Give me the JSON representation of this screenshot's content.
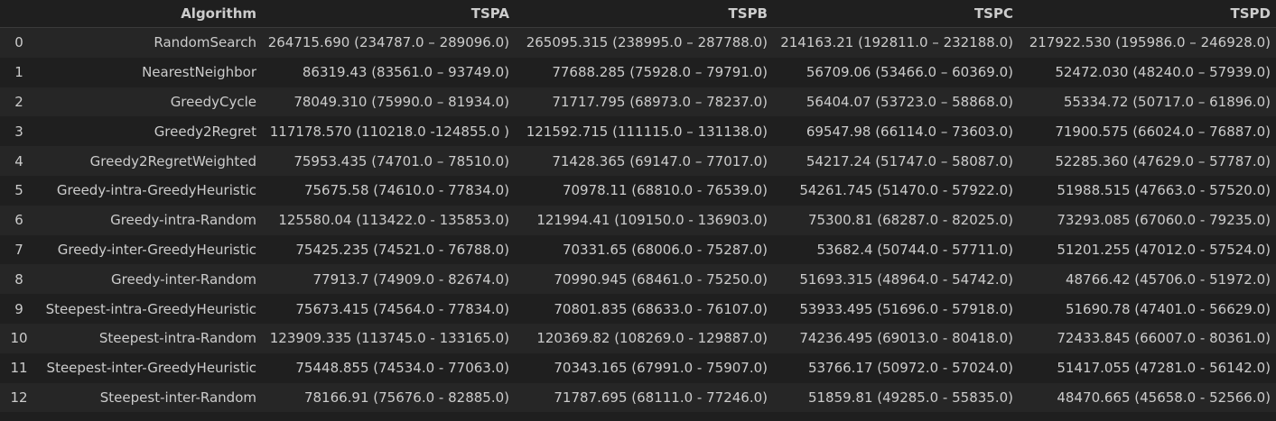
{
  "table": {
    "columns": [
      "",
      "Algorithm",
      "TSPA",
      "TSPB",
      "TSPC",
      "TSPD"
    ],
    "rows": [
      [
        "0",
        "RandomSearch",
        "264715.690 (234787.0 – 289096.0)",
        "265095.315 (238995.0 – 287788.0)",
        "214163.21 (192811.0 – 232188.0)",
        "217922.530 (195986.0 – 246928.0)"
      ],
      [
        "1",
        "NearestNeighbor",
        "86319.43 (83561.0 – 93749.0)",
        "77688.285 (75928.0 – 79791.0)",
        "56709.06 (53466.0 – 60369.0)",
        "52472.030 (48240.0 – 57939.0)"
      ],
      [
        "2",
        "GreedyCycle",
        "78049.310 (75990.0 – 81934.0)",
        "71717.795 (68973.0 – 78237.0)",
        "56404.07 (53723.0 – 58868.0)",
        "55334.72 (50717.0 – 61896.0)"
      ],
      [
        "3",
        "Greedy2Regret",
        "117178.570 (110218.0 -124855.0 )",
        "121592.715 (111115.0 – 131138.0)",
        "69547.98 (66114.0 – 73603.0)",
        "71900.575 (66024.0 – 76887.0)"
      ],
      [
        "4",
        "Greedy2RegretWeighted",
        "75953.435 (74701.0 – 78510.0)",
        "71428.365 (69147.0 – 77017.0)",
        "54217.24 (51747.0 – 58087.0)",
        "52285.360 (47629.0 – 57787.0)"
      ],
      [
        "5",
        "Greedy-intra-GreedyHeuristic",
        "75675.58 (74610.0 - 77834.0)",
        "70978.11 (68810.0 - 76539.0)",
        "54261.745 (51470.0 - 57922.0)",
        "51988.515 (47663.0 - 57520.0)"
      ],
      [
        "6",
        "Greedy-intra-Random",
        "125580.04 (113422.0 - 135853.0)",
        "121994.41 (109150.0 - 136903.0)",
        "75300.81 (68287.0 - 82025.0)",
        "73293.085 (67060.0 - 79235.0)"
      ],
      [
        "7",
        "Greedy-inter-GreedyHeuristic",
        "75425.235 (74521.0 - 76788.0)",
        "70331.65 (68006.0 - 75287.0)",
        "53682.4 (50744.0 - 57711.0)",
        "51201.255 (47012.0 - 57524.0)"
      ],
      [
        "8",
        "Greedy-inter-Random",
        "77913.7 (74909.0 - 82674.0)",
        "70990.945 (68461.0 - 75250.0)",
        "51693.315 (48964.0 - 54742.0)",
        "48766.42 (45706.0 - 51972.0)"
      ],
      [
        "9",
        "Steepest-intra-GreedyHeuristic",
        "75673.415 (74564.0 - 77834.0)",
        "70801.835 (68633.0 - 76107.0)",
        "53933.495 (51696.0 - 57918.0)",
        "51690.78 (47401.0 - 56629.0)"
      ],
      [
        "10",
        "Steepest-intra-Random",
        "123909.335 (113745.0 - 133165.0)",
        "120369.82 (108269.0 - 129887.0)",
        "74236.495 (69013.0 - 80418.0)",
        "72433.845 (66007.0 - 80361.0)"
      ],
      [
        "11",
        "Steepest-inter-GreedyHeuristic",
        "75448.855 (74534.0 - 77063.0)",
        "70343.165 (67991.0 - 75907.0)",
        "53766.17 (50972.0 - 57024.0)",
        "51417.055 (47281.0 - 56142.0)"
      ],
      [
        "12",
        "Steepest-inter-Random",
        "78166.91 (75676.0 - 82885.0)",
        "71787.695 (68111.0 - 77246.0)",
        "51859.81 (49285.0 - 55835.0)",
        "48470.665 (45658.0 - 52566.0)"
      ]
    ]
  }
}
